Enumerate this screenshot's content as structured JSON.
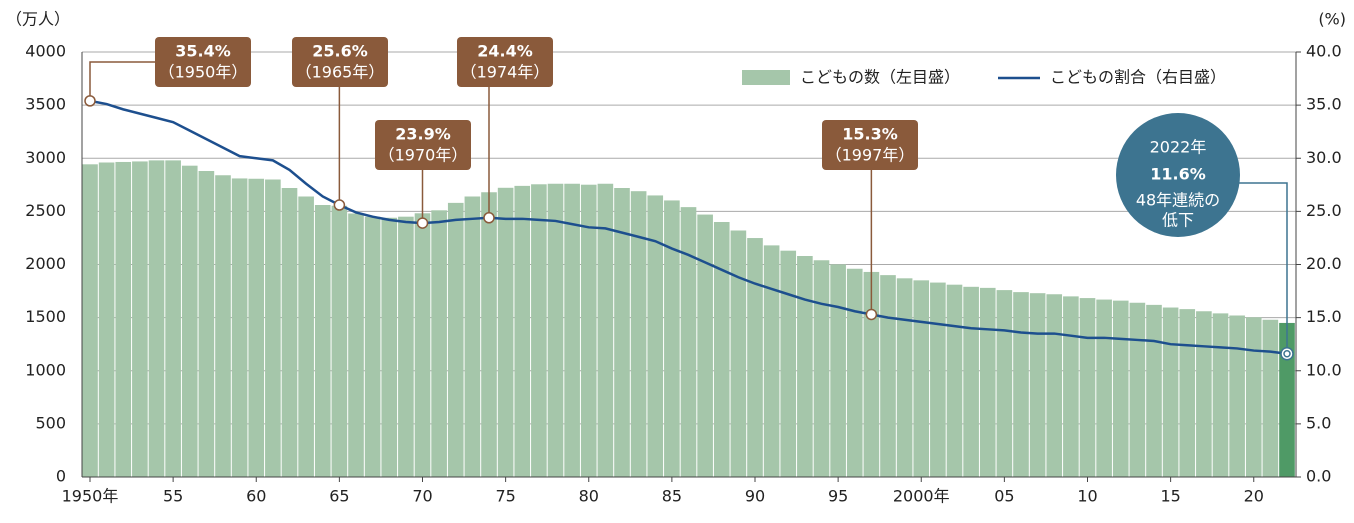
{
  "chart_data": {
    "type": "bar",
    "y_label": "（万人）",
    "y2_label": "(%)",
    "categories": [
      "1950年",
      null,
      null,
      null,
      null,
      "55",
      null,
      null,
      null,
      null,
      "60",
      null,
      null,
      null,
      null,
      "65",
      null,
      null,
      null,
      null,
      "70",
      null,
      null,
      null,
      null,
      "75",
      null,
      null,
      null,
      null,
      "80",
      null,
      null,
      null,
      null,
      "85",
      null,
      null,
      null,
      null,
      "90",
      null,
      null,
      null,
      null,
      "95",
      null,
      null,
      null,
      null,
      "2000年",
      null,
      null,
      null,
      null,
      "05",
      null,
      null,
      null,
      null,
      "10",
      null,
      null,
      null,
      null,
      "15",
      null,
      null,
      null,
      null,
      "20",
      null,
      null
    ],
    "series": [
      {
        "name": "こどもの数（左目盛）",
        "type": "bar",
        "color": "#a5c6aa",
        "highlight_color": "#4f9a66",
        "values": [
          2943,
          2960,
          2965,
          2970,
          2980,
          2980,
          2930,
          2880,
          2840,
          2810,
          2807,
          2800,
          2720,
          2640,
          2560,
          2553,
          2480,
          2450,
          2440,
          2450,
          2482,
          2510,
          2580,
          2640,
          2680,
          2722,
          2740,
          2755,
          2760,
          2760,
          2751,
          2760,
          2720,
          2690,
          2650,
          2603,
          2540,
          2470,
          2400,
          2320,
          2249,
          2180,
          2130,
          2080,
          2040,
          2001,
          1960,
          1930,
          1900,
          1870,
          1851,
          1830,
          1810,
          1790,
          1780,
          1759,
          1740,
          1730,
          1720,
          1700,
          1684,
          1670,
          1660,
          1640,
          1620,
          1595,
          1580,
          1560,
          1540,
          1520,
          1503,
          1480,
          1450
        ]
      },
      {
        "name": "こどもの割合（右目盛）",
        "type": "line",
        "axis": "y2",
        "color": "#1d4f8e",
        "values": [
          35.4,
          35.1,
          34.6,
          34.2,
          33.8,
          33.4,
          32.6,
          31.8,
          31.0,
          30.2,
          30.0,
          29.8,
          28.9,
          27.6,
          26.4,
          25.6,
          24.9,
          24.5,
          24.2,
          24.0,
          23.9,
          24.0,
          24.2,
          24.3,
          24.4,
          24.3,
          24.3,
          24.2,
          24.1,
          23.8,
          23.5,
          23.4,
          23.0,
          22.6,
          22.2,
          21.5,
          20.9,
          20.2,
          19.5,
          18.8,
          18.2,
          17.7,
          17.2,
          16.7,
          16.3,
          16.0,
          15.6,
          15.3,
          15.0,
          14.8,
          14.6,
          14.4,
          14.2,
          14.0,
          13.9,
          13.8,
          13.6,
          13.5,
          13.5,
          13.3,
          13.1,
          13.1,
          13.0,
          12.9,
          12.8,
          12.5,
          12.4,
          12.3,
          12.2,
          12.1,
          11.9,
          11.8,
          11.6
        ]
      }
    ],
    "ylim": [
      0,
      4000
    ],
    "yticks": [
      0,
      500,
      1000,
      1500,
      2000,
      2500,
      3000,
      3500,
      4000
    ],
    "y2lim": [
      0,
      40
    ],
    "y2ticks": [
      {
        "value": 0,
        "label": "0.0"
      },
      {
        "value": 5,
        "label": "5.0"
      },
      {
        "value": 10,
        "label": "10.0"
      },
      {
        "value": 15,
        "label": "15.0"
      },
      {
        "value": 20,
        "label": "20.0"
      },
      {
        "value": 25,
        "label": "25.0"
      },
      {
        "value": 30,
        "label": "30.0"
      },
      {
        "value": 35,
        "label": "35.0"
      },
      {
        "value": 40,
        "label": "40.0"
      }
    ],
    "grid": true,
    "legend": "top-right",
    "annotations": [
      {
        "index": 0,
        "label": "35.4%",
        "sub": "（1950年）"
      },
      {
        "index": 15,
        "label": "25.6%",
        "sub": "（1965年）"
      },
      {
        "index": 24,
        "label": "24.4%",
        "sub": "（1974年）"
      },
      {
        "index": 20,
        "label": "23.9%",
        "sub": "（1970年）"
      },
      {
        "index": 47,
        "label": "15.3%",
        "sub": "（1997年）"
      }
    ],
    "callout": {
      "index": 72,
      "lines": [
        "2022年",
        "11.6%",
        "48年連続の",
        "低下"
      ],
      "color": "#3d7490"
    }
  }
}
